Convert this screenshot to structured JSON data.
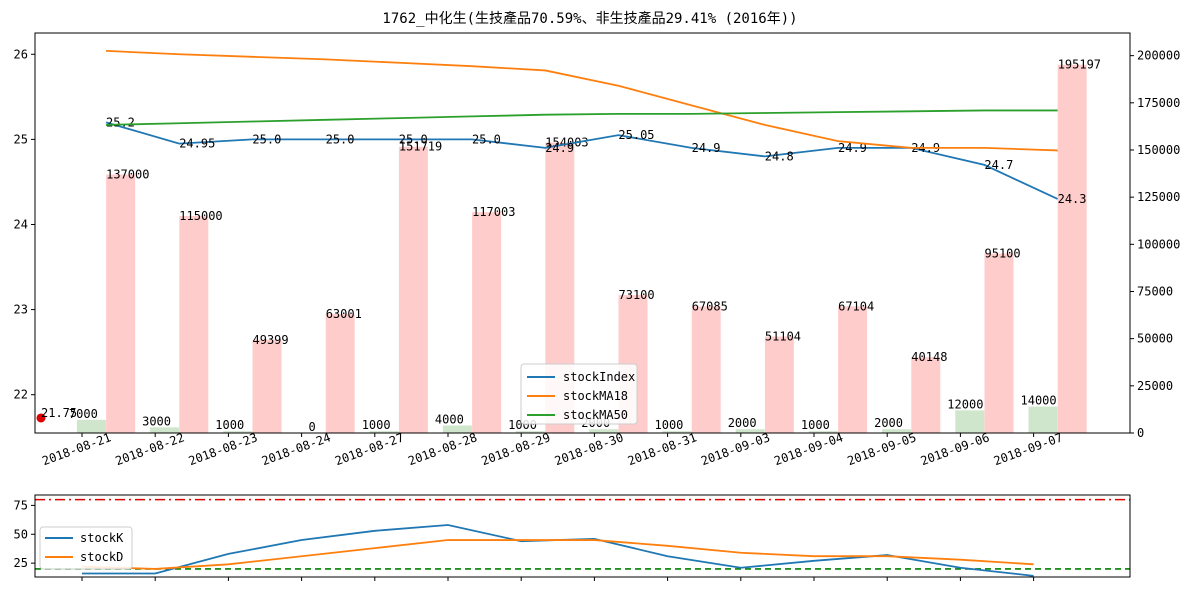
{
  "chart_data": [
    {
      "type": "line+bar",
      "title": "1762_中化生(生技產品70.59%、非生技產品29.41% (2016年))",
      "categories": [
        "2018-08-21",
        "2018-08-22",
        "2018-08-23",
        "2018-08-24",
        "2018-08-27",
        "2018-08-28",
        "2018-08-29",
        "2018-08-30",
        "2018-08-31",
        "2018-09-03",
        "2018-09-04",
        "2018-09-05",
        "2018-09-06",
        "2018-09-07"
      ],
      "ylim_left": [
        21.55,
        26.25
      ],
      "yticks_left": [
        22,
        23,
        24,
        25,
        26
      ],
      "ylim_right": [
        0,
        212000
      ],
      "yticks_right": [
        0,
        25000,
        50000,
        75000,
        100000,
        125000,
        150000,
        175000,
        200000
      ],
      "grid": false,
      "legend_placement": "lower-center",
      "series": [
        {
          "name": "stockIndex",
          "color": "#1f77b4",
          "values": [
            25.2,
            24.95,
            25.0,
            25.0,
            25.0,
            25.0,
            24.9,
            25.05,
            24.9,
            24.8,
            24.9,
            24.9,
            24.7,
            24.3
          ],
          "labels": [
            "25.2",
            "24.95",
            "25.0",
            "25.0",
            "25.0",
            "25.0",
            "24.9",
            "25.05",
            "24.9",
            "24.8",
            "24.9",
            "24.9",
            "24.7",
            "24.3"
          ]
        },
        {
          "name": "stockMA18",
          "color": "#ff7f0e",
          "values": [
            26.04,
            26.0,
            25.97,
            25.94,
            25.9,
            25.86,
            25.81,
            25.63,
            25.4,
            25.17,
            24.98,
            24.9,
            24.9,
            24.87
          ]
        },
        {
          "name": "stockMA50",
          "color": "#2ca02c",
          "values": [
            25.17,
            25.19,
            25.21,
            25.23,
            25.25,
            25.27,
            25.29,
            25.3,
            25.3,
            25.31,
            25.32,
            25.33,
            25.34,
            25.34
          ]
        }
      ],
      "volume_up": {
        "color": "#ffcccc",
        "values": [
          137000,
          115000,
          49399,
          63001,
          151719,
          117003,
          154003,
          73100,
          67085,
          51104,
          67104,
          40148,
          95100,
          195197
        ],
        "labels": [
          "137000",
          "115000",
          "49399",
          "63001",
          "151719",
          "117003",
          "154003",
          "73100",
          "67085",
          "51104",
          "67104",
          "40148",
          "95100",
          "195197"
        ]
      },
      "volume_down": {
        "color": "#d0e6cc",
        "values": [
          7000,
          3000,
          1000,
          0,
          1000,
          4000,
          1000,
          2000,
          1000,
          2000,
          1000,
          2000,
          12000,
          14000
        ],
        "labels": [
          "7000",
          "3000",
          "1000",
          "0",
          "1000",
          "4000",
          "1000",
          "2000",
          "1000",
          "2000",
          "1000",
          "2000",
          "12000",
          "14000"
        ]
      },
      "marker": {
        "value": 21.75,
        "label": "21.75",
        "color": "#dd0000"
      }
    },
    {
      "type": "line",
      "ylim": [
        13,
        84
      ],
      "yticks": [
        25,
        50,
        75
      ],
      "legend_placement": "center-left",
      "series": [
        {
          "name": "stockK",
          "color": "#1f77b4",
          "values": [
            16,
            16,
            33,
            45,
            53,
            58,
            44,
            46,
            31,
            21,
            27,
            32,
            21,
            14
          ]
        },
        {
          "name": "stockD",
          "color": "#ff7f0e",
          "values": [
            22,
            20,
            24,
            31,
            38,
            45,
            45,
            45,
            40,
            34,
            31,
            31,
            28,
            24
          ]
        }
      ],
      "hlines": [
        {
          "value": 80,
          "color": "#dd0000",
          "style": "dash-dot"
        },
        {
          "value": 20,
          "color": "#008000",
          "style": "dashed"
        }
      ]
    }
  ]
}
